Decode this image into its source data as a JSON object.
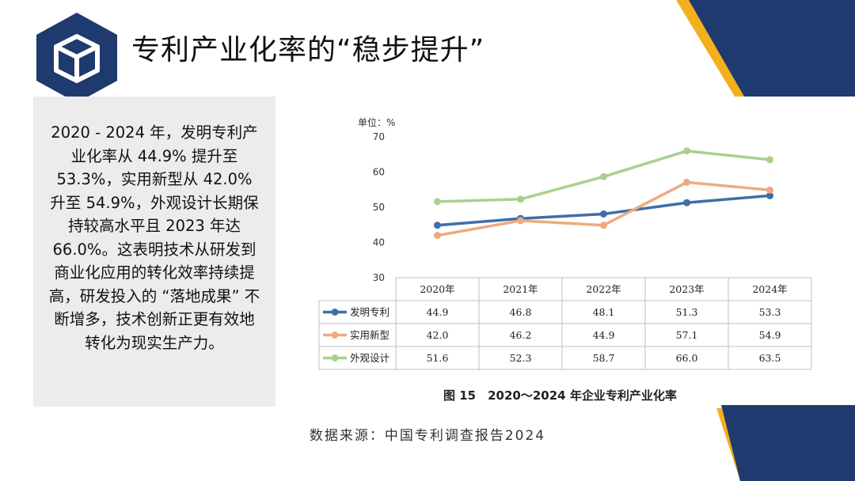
{
  "slide": {
    "title": "专利产业化率的“稳步提升”",
    "paragraph": "2020 - 2024 年，发明专利产业化率从 44.9% 提升至 53.3%，实用新型从 42.0% 升至 54.9%，外观设计长期保持较高水平且 2023 年达 66.0%。这表明技术从研发到商业化应用的转化效率持续提高，研发投入的 “落地成果” 不断增多，技术创新正更有效地转化为现实生产力。",
    "source": "数据来源：中国专利调查报告2024",
    "icon": "cube-icon"
  },
  "colors": {
    "navy": "#1f3a6e",
    "gold": "#f2b01e",
    "series_blue": "#3f6ea8",
    "series_orange": "#eeaa80",
    "series_green": "#a9d18e"
  },
  "chart_data": {
    "type": "line",
    "unit_label": "单位：%",
    "categories": [
      "2020年",
      "2021年",
      "2022年",
      "2023年",
      "2024年"
    ],
    "ylim": [
      30,
      70
    ],
    "yticks": [
      "30",
      "40",
      "50",
      "60",
      "70"
    ],
    "grid": false,
    "legend": "table-left",
    "series": [
      {
        "name": "发明专利",
        "values": [
          44.9,
          46.8,
          48.1,
          51.3,
          53.3
        ],
        "labels": [
          "44.9",
          "46.8",
          "48.1",
          "51.3",
          "53.3"
        ],
        "color": "#3f6ea8"
      },
      {
        "name": "实用新型",
        "values": [
          42.0,
          46.2,
          44.9,
          57.1,
          54.9
        ],
        "labels": [
          "42.0",
          "46.2",
          "44.9",
          "57.1",
          "54.9"
        ],
        "color": "#eeaa80"
      },
      {
        "name": "外观设计",
        "values": [
          51.6,
          52.3,
          58.7,
          66.0,
          63.5
        ],
        "labels": [
          "51.6",
          "52.3",
          "58.7",
          "66.0",
          "63.5"
        ],
        "color": "#a9d18e"
      }
    ],
    "caption": "图 15　2020～2024 年企业专利产业化率"
  }
}
